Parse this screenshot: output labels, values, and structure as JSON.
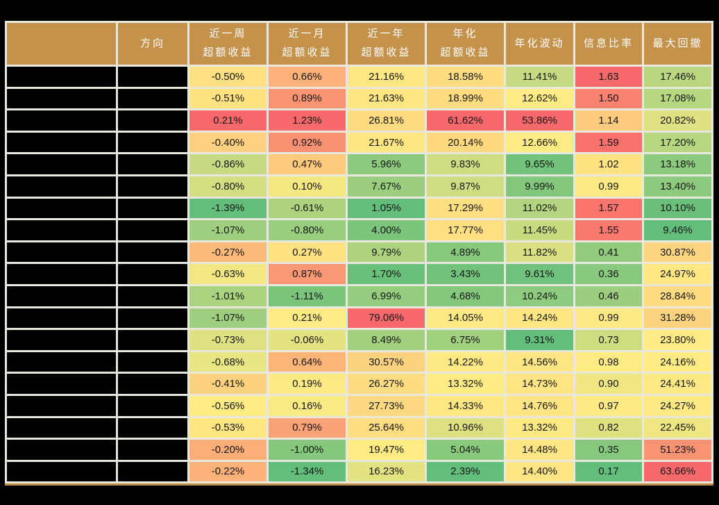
{
  "colors": {
    "page_bg": "#000000",
    "header_bg": "#C5924B",
    "header_text": "#FFFFFF",
    "grid_line": "#E9E8DF",
    "cell_text": "#151515",
    "redacted_cell": "#000000",
    "table_bottom_border": "#BE8C3D",
    "heatmap_low_green": "#63BE7B",
    "heatmap_mid_yellow": "#FFEB84",
    "heatmap_high_red": "#F8696B"
  },
  "chart_data": {
    "type": "table",
    "columns": [
      {
        "line1": "",
        "line2": ""
      },
      {
        "line1": "方向",
        "line2": ""
      },
      {
        "line1": "近一周",
        "line2": "超额收益"
      },
      {
        "line1": "近一月",
        "line2": "超额收益"
      },
      {
        "line1": "近一年",
        "line2": "超额收益"
      },
      {
        "line1": "年化",
        "line2": "超额收益"
      },
      {
        "line1": "年化波动",
        "line2": ""
      },
      {
        "line1": "信息比率",
        "line2": ""
      },
      {
        "line1": "最大回撤",
        "line2": ""
      }
    ],
    "rows": [
      {
        "cells": [
          {
            "v": "-0.50%",
            "bg": "#FEE182"
          },
          {
            "v": "0.66%",
            "bg": "#FCB279"
          },
          {
            "v": "21.16%",
            "bg": "#FFE783"
          },
          {
            "v": "18.58%",
            "bg": "#FEDD81"
          },
          {
            "v": "11.41%",
            "bg": "#C6DB81"
          },
          {
            "v": "1.63",
            "bg": "#F8696B"
          },
          {
            "v": "17.46%",
            "bg": "#BAD780"
          }
        ]
      },
      {
        "cells": [
          {
            "v": "-0.51%",
            "bg": "#FFE382"
          },
          {
            "v": "0.89%",
            "bg": "#FA9473"
          },
          {
            "v": "21.63%",
            "bg": "#FFE683"
          },
          {
            "v": "18.99%",
            "bg": "#FEDC81"
          },
          {
            "v": "12.62%",
            "bg": "#FFEB84"
          },
          {
            "v": "1.50",
            "bg": "#F98370"
          },
          {
            "v": "17.08%",
            "bg": "#B6D680"
          }
        ]
      },
      {
        "cells": [
          {
            "v": "0.21%",
            "bg": "#F8696B"
          },
          {
            "v": "1.23%",
            "bg": "#F8696B"
          },
          {
            "v": "26.81%",
            "bg": "#FEDB81"
          },
          {
            "v": "61.62%",
            "bg": "#F8696B"
          },
          {
            "v": "53.86%",
            "bg": "#F8696B"
          },
          {
            "v": "1.14",
            "bg": "#FDCB7E"
          },
          {
            "v": "20.82%",
            "bg": "#DFE282"
          }
        ]
      },
      {
        "cells": [
          {
            "v": "-0.40%",
            "bg": "#FED07F"
          },
          {
            "v": "0.92%",
            "bg": "#FA9173"
          },
          {
            "v": "21.67%",
            "bg": "#FFE683"
          },
          {
            "v": "20.14%",
            "bg": "#FED980"
          },
          {
            "v": "12.66%",
            "bg": "#FFEB84"
          },
          {
            "v": "1.59",
            "bg": "#F8716D"
          },
          {
            "v": "17.20%",
            "bg": "#B7D680"
          }
        ]
      },
      {
        "cells": [
          {
            "v": "-0.86%",
            "bg": "#C6DB81"
          },
          {
            "v": "0.47%",
            "bg": "#FDCA7E"
          },
          {
            "v": "5.96%",
            "bg": "#8DCA7D"
          },
          {
            "v": "9.83%",
            "bg": "#CDDD81"
          },
          {
            "v": "9.65%",
            "bg": "#73C37C"
          },
          {
            "v": "1.02",
            "bg": "#FFE383"
          },
          {
            "v": "13.18%",
            "bg": "#8CCA7D"
          }
        ]
      },
      {
        "cells": [
          {
            "v": "-0.80%",
            "bg": "#D2DE81"
          },
          {
            "v": "0.10%",
            "bg": "#F4E883"
          },
          {
            "v": "7.67%",
            "bg": "#9BCE7E"
          },
          {
            "v": "9.87%",
            "bg": "#CDDD81"
          },
          {
            "v": "9.99%",
            "bg": "#83C77D"
          },
          {
            "v": "0.99",
            "bg": "#FFE984"
          },
          {
            "v": "13.40%",
            "bg": "#8ECA7E"
          }
        ]
      },
      {
        "cells": [
          {
            "v": "-1.39%",
            "bg": "#63BE7B"
          },
          {
            "v": "-0.61%",
            "bg": "#ADD37F"
          },
          {
            "v": "1.05%",
            "bg": "#63BE7B"
          },
          {
            "v": "17.29%",
            "bg": "#FEE082"
          },
          {
            "v": "11.02%",
            "bg": "#B4D580"
          },
          {
            "v": "1.57",
            "bg": "#F9756D"
          },
          {
            "v": "10.10%",
            "bg": "#6AC07B"
          }
        ]
      },
      {
        "cells": [
          {
            "v": "-1.07%",
            "bg": "#9FCF7E"
          },
          {
            "v": "-0.80%",
            "bg": "#99CE7E"
          },
          {
            "v": "4.00%",
            "bg": "#7CC57C"
          },
          {
            "v": "17.77%",
            "bg": "#FEDF82"
          },
          {
            "v": "11.45%",
            "bg": "#C8DB81"
          },
          {
            "v": "1.55",
            "bg": "#F9796E"
          },
          {
            "v": "9.46%",
            "bg": "#63BE7B"
          }
        ]
      },
      {
        "cells": [
          {
            "v": "-0.27%",
            "bg": "#FCBA7B"
          },
          {
            "v": "0.27%",
            "bg": "#FFE383"
          },
          {
            "v": "9.79%",
            "bg": "#ADD37F"
          },
          {
            "v": "4.89%",
            "bg": "#87C87D"
          },
          {
            "v": "11.82%",
            "bg": "#D9E082"
          },
          {
            "v": "0.41",
            "bg": "#91CB7E"
          },
          {
            "v": "30.87%",
            "bg": "#FED480"
          }
        ]
      },
      {
        "cells": [
          {
            "v": "-0.63%",
            "bg": "#F2E783"
          },
          {
            "v": "0.87%",
            "bg": "#FA9774"
          },
          {
            "v": "1.70%",
            "bg": "#69C07B"
          },
          {
            "v": "3.43%",
            "bg": "#72C27C"
          },
          {
            "v": "9.61%",
            "bg": "#71C27C"
          },
          {
            "v": "0.36",
            "bg": "#88C97D"
          },
          {
            "v": "24.97%",
            "bg": "#FFE783"
          }
        ]
      },
      {
        "cells": [
          {
            "v": "-1.01%",
            "bg": "#AAD37F"
          },
          {
            "v": "-1.11%",
            "bg": "#7AC57C"
          },
          {
            "v": "6.99%",
            "bg": "#95CD7E"
          },
          {
            "v": "4.68%",
            "bg": "#84C77D"
          },
          {
            "v": "10.24%",
            "bg": "#8FCB7E"
          },
          {
            "v": "0.46",
            "bg": "#9BCE7E"
          },
          {
            "v": "28.84%",
            "bg": "#FEDB81"
          }
        ]
      },
      {
        "cells": [
          {
            "v": "-1.07%",
            "bg": "#9FCF7E"
          },
          {
            "v": "0.21%",
            "bg": "#FFEB84"
          },
          {
            "v": "79.06%",
            "bg": "#F8696B"
          },
          {
            "v": "14.05%",
            "bg": "#FFE984"
          },
          {
            "v": "14.24%",
            "bg": "#FFE683"
          },
          {
            "v": "0.99",
            "bg": "#FFE984"
          },
          {
            "v": "31.28%",
            "bg": "#FED37F"
          }
        ]
      },
      {
        "cells": [
          {
            "v": "-0.73%",
            "bg": "#DFE282"
          },
          {
            "v": "-0.06%",
            "bg": "#E4E382"
          },
          {
            "v": "8.49%",
            "bg": "#A2D07F"
          },
          {
            "v": "6.75%",
            "bg": "#A1D07F"
          },
          {
            "v": "9.31%",
            "bg": "#63BE7B"
          },
          {
            "v": "0.73",
            "bg": "#CFDD81"
          },
          {
            "v": "23.80%",
            "bg": "#FFEB84"
          }
        ]
      },
      {
        "cells": [
          {
            "v": "-0.68%",
            "bg": "#E8E583"
          },
          {
            "v": "0.64%",
            "bg": "#FCB479"
          },
          {
            "v": "30.57%",
            "bg": "#FED37F"
          },
          {
            "v": "14.22%",
            "bg": "#FFE984"
          },
          {
            "v": "14.56%",
            "bg": "#FFE583"
          },
          {
            "v": "0.98",
            "bg": "#FFEB84"
          },
          {
            "v": "24.16%",
            "bg": "#FFEA84"
          }
        ]
      },
      {
        "cells": [
          {
            "v": "-0.41%",
            "bg": "#FED27F"
          },
          {
            "v": "0.19%",
            "bg": "#FDEA84"
          },
          {
            "v": "26.27%",
            "bg": "#FEDC81"
          },
          {
            "v": "13.32%",
            "bg": "#FFEB84"
          },
          {
            "v": "14.73%",
            "bg": "#FFE483"
          },
          {
            "v": "0.90",
            "bg": "#F0E783"
          },
          {
            "v": "24.41%",
            "bg": "#FFE984"
          }
        ]
      },
      {
        "cells": [
          {
            "v": "-0.56%",
            "bg": "#FFEB84"
          },
          {
            "v": "0.16%",
            "bg": "#FAEA84"
          },
          {
            "v": "27.73%",
            "bg": "#FED981"
          },
          {
            "v": "14.33%",
            "bg": "#FFE883"
          },
          {
            "v": "14.76%",
            "bg": "#FFE483"
          },
          {
            "v": "0.97",
            "bg": "#FDEA84"
          },
          {
            "v": "24.27%",
            "bg": "#FFE984"
          }
        ]
      },
      {
        "cells": [
          {
            "v": "-0.53%",
            "bg": "#FFE683"
          },
          {
            "v": "0.79%",
            "bg": "#FBA176"
          },
          {
            "v": "25.64%",
            "bg": "#FEDE81"
          },
          {
            "v": "10.96%",
            "bg": "#DDE182"
          },
          {
            "v": "13.32%",
            "bg": "#FFE984"
          },
          {
            "v": "0.82",
            "bg": "#E0E282"
          },
          {
            "v": "22.45%",
            "bg": "#F0E783"
          }
        ]
      },
      {
        "cells": [
          {
            "v": "-0.20%",
            "bg": "#FCAE78"
          },
          {
            "v": "-1.00%",
            "bg": "#85C87D"
          },
          {
            "v": "19.47%",
            "bg": "#FFEB84"
          },
          {
            "v": "5.04%",
            "bg": "#89C97D"
          },
          {
            "v": "14.48%",
            "bg": "#FFE583"
          },
          {
            "v": "0.35",
            "bg": "#86C87D"
          },
          {
            "v": "51.23%",
            "bg": "#FA9273"
          }
        ]
      },
      {
        "cells": [
          {
            "v": "-0.22%",
            "bg": "#FCB279"
          },
          {
            "v": "-1.34%",
            "bg": "#63BE7B"
          },
          {
            "v": "16.23%",
            "bg": "#E4E382"
          },
          {
            "v": "2.39%",
            "bg": "#63BE7B"
          },
          {
            "v": "14.40%",
            "bg": "#FFE583"
          },
          {
            "v": "0.17",
            "bg": "#63BE7B"
          },
          {
            "v": "63.66%",
            "bg": "#F8696B"
          }
        ]
      }
    ]
  }
}
